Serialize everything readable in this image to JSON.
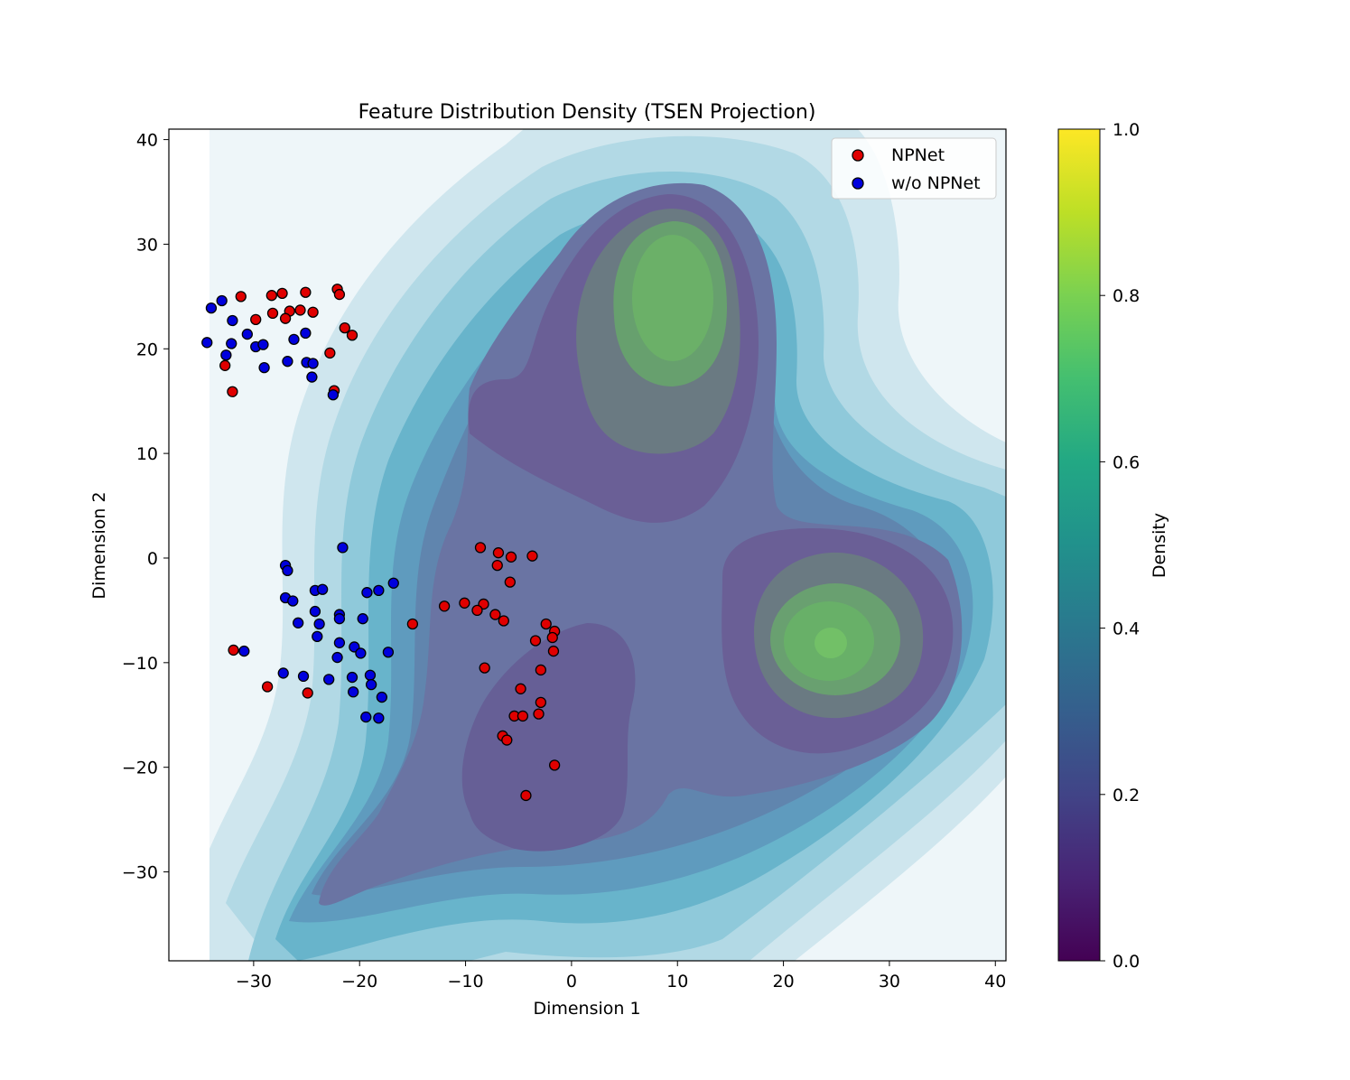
{
  "chart_data": {
    "type": "scatter",
    "title": "Feature Distribution Density (TSEN Projection)",
    "xlabel": "Dimension 1",
    "ylabel": "Dimension 2",
    "xlim": [
      -38,
      41
    ],
    "ylim": [
      -38.5,
      41
    ],
    "xticks": [
      -30,
      -20,
      -10,
      0,
      10,
      20,
      30,
      40
    ],
    "yticks": [
      -30,
      -20,
      -10,
      0,
      10,
      20,
      30,
      40
    ],
    "grid": false,
    "legend_position": "top-right",
    "background_density": {
      "description": "KDE contour of all points, light-blue to dark overlay with green peaks",
      "peaks": [
        [
          10,
          25
        ],
        [
          24.5,
          -8.3
        ]
      ]
    },
    "colorbar": {
      "label": "Density",
      "range": [
        0.0,
        1.0
      ],
      "ticks": [
        "0.0",
        "0.2",
        "0.4",
        "0.6",
        "0.8",
        "1.0"
      ],
      "colormap": [
        "#440154",
        "#3b528b",
        "#21918c",
        "#5ec962",
        "#fde725"
      ]
    },
    "series": [
      {
        "name": "NPNet",
        "color": "#e00000",
        "points": [
          [
            -31.2,
            25.0
          ],
          [
            -28.3,
            25.1
          ],
          [
            -27.3,
            25.3
          ],
          [
            -25.1,
            25.4
          ],
          [
            -22.1,
            25.7
          ],
          [
            -21.9,
            25.2
          ],
          [
            -29.8,
            22.8
          ],
          [
            -28.2,
            23.4
          ],
          [
            -26.6,
            23.6
          ],
          [
            -25.6,
            23.7
          ],
          [
            -27.0,
            22.9
          ],
          [
            -24.4,
            23.5
          ],
          [
            -21.4,
            22.0
          ],
          [
            -20.7,
            21.3
          ],
          [
            -22.8,
            19.6
          ],
          [
            -32.7,
            18.4
          ],
          [
            -32.0,
            15.9
          ],
          [
            -22.4,
            16.0
          ],
          [
            -8.6,
            1.0
          ],
          [
            -6.9,
            0.5
          ],
          [
            -5.7,
            0.1
          ],
          [
            -3.7,
            0.2
          ],
          [
            -7.0,
            -0.7
          ],
          [
            -5.8,
            -2.3
          ],
          [
            -12.0,
            -4.6
          ],
          [
            -10.1,
            -4.3
          ],
          [
            -8.3,
            -4.4
          ],
          [
            -8.9,
            -5.0
          ],
          [
            -7.2,
            -5.4
          ],
          [
            -6.4,
            -6.0
          ],
          [
            -15.0,
            -6.3
          ],
          [
            -2.4,
            -6.3
          ],
          [
            -1.6,
            -7.0
          ],
          [
            -3.4,
            -7.9
          ],
          [
            -1.8,
            -7.6
          ],
          [
            -1.7,
            -8.9
          ],
          [
            -8.2,
            -10.5
          ],
          [
            -2.9,
            -10.7
          ],
          [
            -4.8,
            -12.5
          ],
          [
            -2.9,
            -13.8
          ],
          [
            -3.1,
            -14.9
          ],
          [
            -5.4,
            -15.1
          ],
          [
            -4.6,
            -15.1
          ],
          [
            -6.5,
            -17.0
          ],
          [
            -6.1,
            -17.4
          ],
          [
            -1.6,
            -19.8
          ],
          [
            -4.3,
            -22.7
          ],
          [
            -31.9,
            -8.8
          ],
          [
            -28.7,
            -12.3
          ],
          [
            -24.9,
            -12.9
          ]
        ]
      },
      {
        "name": "w/o NPNet",
        "color": "#0000dd",
        "points": [
          [
            -34.0,
            23.9
          ],
          [
            -33.0,
            24.6
          ],
          [
            -32.0,
            22.7
          ],
          [
            -34.4,
            20.6
          ],
          [
            -32.1,
            20.5
          ],
          [
            -30.6,
            21.4
          ],
          [
            -29.8,
            20.2
          ],
          [
            -29.1,
            20.4
          ],
          [
            -32.6,
            19.4
          ],
          [
            -29.0,
            18.2
          ],
          [
            -26.8,
            18.8
          ],
          [
            -26.2,
            20.9
          ],
          [
            -25.1,
            21.5
          ],
          [
            -25.0,
            18.7
          ],
          [
            -24.4,
            18.6
          ],
          [
            -24.5,
            17.3
          ],
          [
            -22.5,
            15.6
          ],
          [
            -21.6,
            1.0
          ],
          [
            -27.0,
            -0.7
          ],
          [
            -26.8,
            -1.2
          ],
          [
            -24.2,
            -3.1
          ],
          [
            -23.5,
            -3.0
          ],
          [
            -19.3,
            -3.3
          ],
          [
            -18.2,
            -3.1
          ],
          [
            -16.8,
            -2.4
          ],
          [
            -27.0,
            -3.8
          ],
          [
            -26.3,
            -4.1
          ],
          [
            -24.2,
            -5.1
          ],
          [
            -21.9,
            -5.4
          ],
          [
            -21.9,
            -5.8
          ],
          [
            -25.8,
            -6.2
          ],
          [
            -23.8,
            -6.3
          ],
          [
            -19.7,
            -5.8
          ],
          [
            -24.0,
            -7.5
          ],
          [
            -21.9,
            -8.1
          ],
          [
            -20.5,
            -8.5
          ],
          [
            -19.9,
            -9.1
          ],
          [
            -17.3,
            -9.0
          ],
          [
            -22.1,
            -9.5
          ],
          [
            -30.9,
            -8.9
          ],
          [
            -27.2,
            -11.0
          ],
          [
            -25.3,
            -11.3
          ],
          [
            -22.9,
            -11.6
          ],
          [
            -20.7,
            -11.4
          ],
          [
            -19.0,
            -11.2
          ],
          [
            -18.9,
            -12.1
          ],
          [
            -20.6,
            -12.8
          ],
          [
            -17.9,
            -13.3
          ],
          [
            -19.4,
            -15.2
          ],
          [
            -18.2,
            -15.3
          ]
        ]
      }
    ]
  }
}
